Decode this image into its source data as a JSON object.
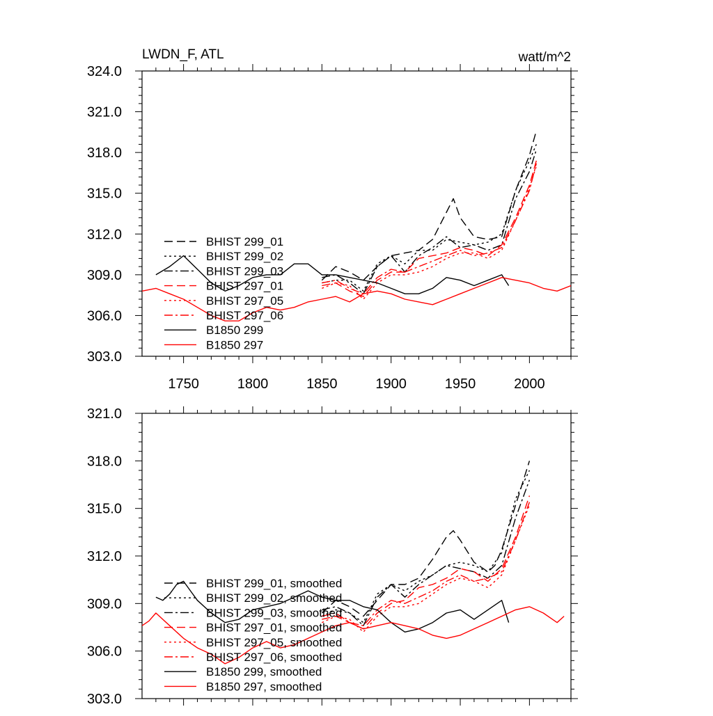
{
  "chart_data": [
    {
      "type": "line",
      "title": "LWDN_F, ATL",
      "units": "watt/m^2",
      "xlim": [
        1720,
        2030
      ],
      "ylim": [
        303.0,
        324.0
      ],
      "x_ticks": [
        1750,
        1800,
        1850,
        1900,
        1950,
        2000
      ],
      "x_tick_labels": [
        "1750",
        "1800",
        "1850",
        "1900",
        "1950",
        "2000"
      ],
      "y_ticks": [
        303.0,
        306.0,
        309.0,
        312.0,
        315.0,
        318.0,
        321.0,
        324.0
      ],
      "y_tick_labels": [
        "303.0",
        "306.0",
        "309.0",
        "312.0",
        "315.0",
        "318.0",
        "321.0",
        "324.0"
      ],
      "legend_position": "left",
      "series": [
        {
          "name": "BHIST 299_01",
          "color": "#000000",
          "dash": "dash",
          "x": [
            1850,
            1860,
            1870,
            1880,
            1890,
            1900,
            1910,
            1920,
            1930,
            1940,
            1945,
            1950,
            1960,
            1970,
            1980,
            1990,
            2000,
            2005
          ],
          "values": [
            308.6,
            309.6,
            309.2,
            308.6,
            309.6,
            310.4,
            310.6,
            310.8,
            311.6,
            313.6,
            314.6,
            313.2,
            311.8,
            311.6,
            311.8,
            315.2,
            317.8,
            319.6
          ]
        },
        {
          "name": "BHIST 299_02",
          "color": "#000000",
          "dash": "dot",
          "x": [
            1850,
            1860,
            1870,
            1880,
            1890,
            1900,
            1910,
            1920,
            1930,
            1940,
            1950,
            1960,
            1970,
            1980,
            1990,
            2000,
            2005
          ],
          "values": [
            308.4,
            308.6,
            308.6,
            307.8,
            309.8,
            310.4,
            309.8,
            310.8,
            310.8,
            311.6,
            311.4,
            311.2,
            311.4,
            312.0,
            315.2,
            317.4,
            318.6
          ]
        },
        {
          "name": "BHIST 299_03",
          "color": "#000000",
          "dash": "dashdot",
          "x": [
            1850,
            1860,
            1870,
            1880,
            1890,
            1900,
            1910,
            1920,
            1930,
            1940,
            1950,
            1960,
            1970,
            1980,
            1990,
            2000,
            2005
          ],
          "values": [
            308.8,
            309.0,
            308.4,
            307.6,
            309.6,
            310.4,
            309.2,
            310.4,
            311.0,
            311.8,
            311.0,
            311.2,
            310.8,
            311.2,
            314.6,
            316.6,
            318.2
          ]
        },
        {
          "name": "BHIST 297_01",
          "color": "#ff0000",
          "dash": "dash",
          "x": [
            1850,
            1860,
            1870,
            1880,
            1890,
            1900,
            1910,
            1920,
            1930,
            1940,
            1950,
            1960,
            1970,
            1980,
            1990,
            2000,
            2005
          ],
          "values": [
            308.2,
            308.4,
            307.8,
            307.4,
            308.6,
            309.2,
            309.2,
            310.2,
            310.4,
            310.6,
            311.0,
            310.8,
            310.4,
            311.2,
            313.2,
            315.6,
            317.4
          ]
        },
        {
          "name": "BHIST 297_05",
          "color": "#ff0000",
          "dash": "dot",
          "x": [
            1850,
            1860,
            1870,
            1880,
            1890,
            1900,
            1910,
            1920,
            1930,
            1940,
            1950,
            1960,
            1970,
            1980,
            1990,
            2000,
            2005
          ],
          "values": [
            308.0,
            308.4,
            308.2,
            307.2,
            308.4,
            309.0,
            309.0,
            309.2,
            309.6,
            310.2,
            310.6,
            310.6,
            310.2,
            310.8,
            313.0,
            315.4,
            317.0
          ]
        },
        {
          "name": "BHIST 297_06",
          "color": "#ff0000",
          "dash": "dashdot",
          "x": [
            1850,
            1860,
            1870,
            1880,
            1890,
            1900,
            1910,
            1920,
            1930,
            1940,
            1950,
            1960,
            1970,
            1980,
            1990,
            2000,
            2005
          ],
          "values": [
            308.4,
            308.6,
            308.0,
            307.6,
            308.8,
            309.4,
            309.2,
            309.6,
            310.0,
            310.4,
            310.8,
            310.4,
            310.6,
            311.0,
            313.0,
            315.2,
            317.2
          ]
        },
        {
          "name": "B1850 299",
          "color": "#000000",
          "dash": "solid",
          "x": [
            1730,
            1740,
            1750,
            1760,
            1770,
            1780,
            1790,
            1800,
            1810,
            1820,
            1830,
            1840,
            1850,
            1860,
            1870,
            1880,
            1890,
            1900,
            1910,
            1920,
            1930,
            1940,
            1950,
            1960,
            1970,
            1980,
            1985
          ],
          "values": [
            309.0,
            309.6,
            310.4,
            309.4,
            308.4,
            307.8,
            308.2,
            308.8,
            309.0,
            309.0,
            309.8,
            309.8,
            309.0,
            309.0,
            308.8,
            308.6,
            308.4,
            308.0,
            307.6,
            307.6,
            308.0,
            308.8,
            308.6,
            308.2,
            308.6,
            309.0,
            308.2
          ]
        },
        {
          "name": "B1850 297",
          "color": "#ff0000",
          "dash": "solid",
          "x": [
            1720,
            1730,
            1740,
            1750,
            1760,
            1770,
            1780,
            1790,
            1800,
            1810,
            1820,
            1830,
            1840,
            1850,
            1860,
            1870,
            1880,
            1890,
            1900,
            1910,
            1920,
            1930,
            1940,
            1950,
            1960,
            1970,
            1980,
            1990,
            2000,
            2010,
            2020,
            2030
          ],
          "values": [
            307.8,
            308.0,
            307.6,
            307.2,
            306.6,
            306.0,
            305.6,
            305.6,
            306.2,
            306.6,
            306.4,
            306.6,
            307.0,
            307.2,
            307.4,
            307.0,
            307.6,
            307.8,
            307.6,
            307.2,
            307.0,
            306.8,
            307.2,
            307.6,
            308.0,
            308.4,
            308.8,
            308.6,
            308.4,
            308.0,
            307.8,
            308.2
          ]
        }
      ]
    },
    {
      "type": "line",
      "xlim": [
        1720,
        2030
      ],
      "ylim": [
        303.0,
        321.0
      ],
      "x_ticks": [
        1750,
        1800,
        1850,
        1900,
        1950,
        2000
      ],
      "y_ticks": [
        303.0,
        306.0,
        309.0,
        312.0,
        315.0,
        318.0,
        321.0
      ],
      "y_tick_labels": [
        "303.0",
        "306.0",
        "309.0",
        "312.0",
        "315.0",
        "318.0",
        "321.0"
      ],
      "legend_position": "left",
      "series": [
        {
          "name": "BHIST 299_01, smoothed",
          "color": "#000000",
          "dash": "dash",
          "x": [
            1850,
            1860,
            1870,
            1880,
            1890,
            1900,
            1910,
            1920,
            1930,
            1940,
            1945,
            1950,
            1960,
            1970,
            1975,
            1980,
            1990,
            2000
          ],
          "values": [
            308.4,
            309.2,
            308.8,
            308.2,
            309.2,
            310.2,
            310.2,
            310.6,
            311.8,
            313.2,
            313.6,
            313.0,
            311.6,
            311.0,
            311.4,
            312.4,
            315.2,
            318.0
          ]
        },
        {
          "name": "BHIST 299_02, smoothed",
          "color": "#000000",
          "dash": "dot",
          "x": [
            1850,
            1860,
            1870,
            1880,
            1890,
            1900,
            1910,
            1920,
            1930,
            1940,
            1950,
            1960,
            1970,
            1980,
            1990,
            2000
          ],
          "values": [
            308.2,
            308.6,
            308.4,
            307.8,
            309.6,
            310.2,
            309.8,
            310.4,
            310.8,
            311.4,
            311.6,
            311.4,
            311.0,
            312.2,
            315.6,
            317.4
          ]
        },
        {
          "name": "BHIST 299_03, smoothed",
          "color": "#000000",
          "dash": "dashdot",
          "x": [
            1850,
            1860,
            1870,
            1880,
            1890,
            1900,
            1910,
            1920,
            1930,
            1940,
            1950,
            1960,
            1970,
            1980,
            1990,
            2000
          ],
          "values": [
            308.6,
            308.8,
            308.4,
            307.6,
            309.4,
            310.2,
            309.4,
            310.2,
            310.8,
            311.4,
            311.2,
            311.0,
            310.6,
            311.4,
            314.4,
            316.8
          ]
        },
        {
          "name": "BHIST 297_01, smoothed",
          "color": "#ff0000",
          "dash": "dash",
          "x": [
            1850,
            1860,
            1870,
            1880,
            1890,
            1900,
            1910,
            1920,
            1930,
            1940,
            1950,
            1960,
            1970,
            1980,
            1990,
            2000
          ],
          "values": [
            308.0,
            308.2,
            307.8,
            307.4,
            308.4,
            309.0,
            309.2,
            310.0,
            310.2,
            310.6,
            311.2,
            311.0,
            310.4,
            311.2,
            313.2,
            315.8
          ]
        },
        {
          "name": "BHIST 297_05, smoothed",
          "color": "#ff0000",
          "dash": "dot",
          "x": [
            1850,
            1860,
            1870,
            1880,
            1890,
            1900,
            1910,
            1920,
            1930,
            1940,
            1950,
            1960,
            1970,
            1980,
            1990,
            2000
          ],
          "values": [
            307.8,
            308.2,
            308.0,
            307.2,
            308.2,
            308.8,
            308.8,
            309.0,
            309.6,
            310.2,
            310.6,
            310.4,
            310.0,
            310.8,
            313.0,
            315.2
          ]
        },
        {
          "name": "BHIST 297_06, smoothed",
          "color": "#ff0000",
          "dash": "dashdot",
          "x": [
            1850,
            1860,
            1870,
            1880,
            1890,
            1900,
            1910,
            1920,
            1930,
            1940,
            1950,
            1960,
            1970,
            1980,
            1990,
            2000
          ],
          "values": [
            308.2,
            308.4,
            307.8,
            307.6,
            308.6,
            309.2,
            309.0,
            309.4,
            309.8,
            310.4,
            310.8,
            310.4,
            310.6,
            311.0,
            313.0,
            315.4
          ]
        },
        {
          "name": "B1850 299, smoothed",
          "color": "#000000",
          "dash": "solid",
          "x": [
            1730,
            1735,
            1740,
            1745,
            1750,
            1755,
            1760,
            1770,
            1780,
            1790,
            1800,
            1810,
            1820,
            1830,
            1840,
            1850,
            1860,
            1870,
            1880,
            1890,
            1900,
            1910,
            1920,
            1930,
            1940,
            1950,
            1960,
            1970,
            1980,
            1985
          ],
          "values": [
            309.4,
            309.2,
            309.6,
            310.2,
            310.4,
            309.8,
            309.2,
            308.4,
            307.8,
            308.0,
            308.6,
            308.8,
            309.0,
            309.4,
            309.8,
            309.4,
            309.2,
            309.2,
            308.8,
            308.6,
            307.8,
            307.2,
            307.4,
            307.8,
            308.4,
            308.6,
            308.0,
            308.6,
            309.2,
            307.8
          ]
        },
        {
          "name": "B1850 297, smoothed",
          "color": "#ff0000",
          "dash": "solid",
          "x": [
            1720,
            1725,
            1730,
            1740,
            1750,
            1760,
            1770,
            1780,
            1790,
            1800,
            1810,
            1820,
            1830,
            1840,
            1850,
            1860,
            1870,
            1880,
            1890,
            1900,
            1910,
            1920,
            1930,
            1940,
            1950,
            1960,
            1970,
            1980,
            1990,
            2000,
            2010,
            2020,
            2025
          ],
          "values": [
            307.6,
            307.9,
            308.4,
            307.6,
            306.8,
            306.2,
            305.8,
            305.2,
            305.6,
            306.2,
            306.6,
            306.2,
            306.4,
            306.8,
            307.2,
            307.6,
            307.8,
            307.4,
            307.6,
            307.8,
            307.6,
            307.4,
            307.0,
            306.8,
            307.0,
            307.4,
            307.8,
            308.2,
            308.6,
            308.8,
            308.4,
            307.8,
            308.2
          ]
        }
      ]
    }
  ]
}
